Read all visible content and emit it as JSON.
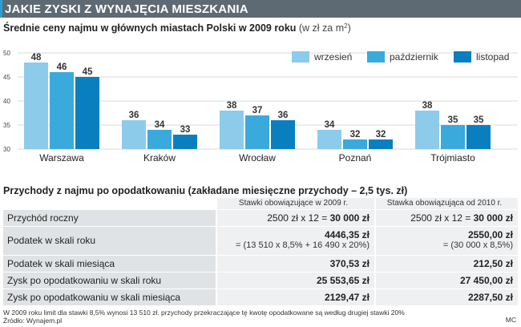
{
  "header": {
    "title": "JAKIE ZYSKI Z WYNAJĘCIA MIESZKANIA"
  },
  "chart_title": {
    "main": "Średnie ceny najmu w głównych miastach Polski w 2009 roku",
    "unit": "(w zł za m",
    "unit_sup": "2",
    "unit_close": ")"
  },
  "chart_data": {
    "type": "bar",
    "title": "Średnie ceny najmu w głównych miastach Polski w 2009 roku",
    "categories": [
      "Warszawa",
      "Kraków",
      "Wrocław",
      "Poznań",
      "Trójmiasto"
    ],
    "series": [
      {
        "name": "wrzesień",
        "color": "#8ccbea",
        "values": [
          48,
          36,
          38,
          34,
          38
        ]
      },
      {
        "name": "październik",
        "color": "#3aa9dc",
        "values": [
          46,
          34,
          37,
          32,
          35
        ]
      },
      {
        "name": "listopad",
        "color": "#0a7fc0",
        "values": [
          45,
          33,
          36,
          32,
          35
        ]
      }
    ],
    "yticks": [
      30,
      35,
      40,
      45,
      50
    ],
    "ylim": [
      30,
      50
    ],
    "legend_position": "top-right",
    "grid": true
  },
  "table": {
    "title": "Przychody z najmu po opodatkowaniu (zakładane miesięczne przychody – 2,5 tys. zł)",
    "columns": [
      "Stawki obowiązujące w 2009 r.",
      "Stawka obowiązująca od 2010 r."
    ],
    "rows": [
      {
        "label": "Przychód roczny",
        "c1_pre": "2500 zł x 12 = ",
        "c1_bold": "30 000 zł",
        "c2_pre": "2500 zł x 12 = ",
        "c2_bold": "30 000 zł"
      },
      {
        "label": "Podatek w skali roku",
        "c1_bold": "4446,35 zł",
        "c1_sub": "= (13 510 x 8,5% + 16 490 x 20%)",
        "c2_bold": "2550,00 zł",
        "c2_sub": "= (30 000 x 8,5%)"
      },
      {
        "label": "Podatek w skali miesiąca",
        "c1_bold": "370,53 zł",
        "c2_bold": "212,50 zł"
      },
      {
        "label": "Zysk po opodatkowaniu w skali roku",
        "c1_bold": "25 553,65 zł",
        "c2_bold": "27 450,00 zł"
      },
      {
        "label": "Zysk po opodatkowaniu w skali miesiąca",
        "c1_bold": "2129,47 zł",
        "c2_bold": "2287,50 zł"
      }
    ]
  },
  "footnote": {
    "line1": "W 2009 roku limit dla stawki 8,5% wynosi 13 510 zł. przychody przekraczające tę kwotę opodatkowane są według drugiej stawki 20%",
    "line2": "Źródło: Wynajem.pl",
    "signature": "MC"
  }
}
